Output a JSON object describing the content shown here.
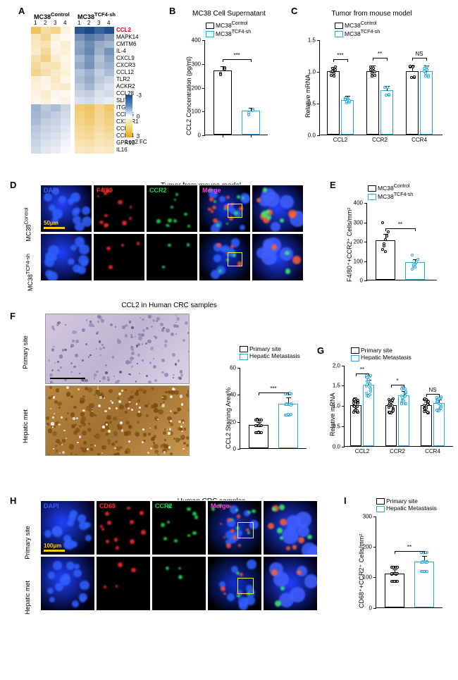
{
  "panelA": {
    "label": "A",
    "header1": "MC38",
    "header1sup": "Control",
    "header2": "MC38",
    "header2sup": "TCF4-sh",
    "colnums": [
      "1",
      "2",
      "3",
      "4",
      "1",
      "2",
      "3",
      "4"
    ],
    "genes": [
      "CCL2",
      "MAPK14",
      "CMTM6",
      "IL-4",
      "CXCL9",
      "CXCR3",
      "CCL12",
      "TLR2",
      "ACKR2",
      "CCL28",
      "SLIT2",
      "ITGB2",
      "CCL25",
      "CX3CR1",
      "CCR8",
      "CCL24",
      "GPR17",
      "IL16"
    ],
    "highlight_gene": "CCL2",
    "matrix": [
      [
        2.1,
        1.2,
        1.5,
        0.4,
        -2.8,
        -3.0,
        -2.6,
        -2.9
      ],
      [
        0.9,
        1.4,
        0.5,
        0.2,
        -1.8,
        -2.2,
        -2.0,
        -1.6
      ],
      [
        0.8,
        1.0,
        0.3,
        0.6,
        -1.5,
        -1.9,
        -1.4,
        -1.2
      ],
      [
        0.7,
        1.3,
        0.4,
        0.5,
        -1.6,
        -2.0,
        -1.3,
        -1.8
      ],
      [
        1.1,
        1.6,
        0.6,
        0.3,
        -1.2,
        -1.7,
        -1.0,
        -1.5
      ],
      [
        1.3,
        0.9,
        1.0,
        0.4,
        -1.4,
        -1.8,
        -1.1,
        -1.3
      ],
      [
        1.5,
        1.1,
        0.7,
        0.5,
        -1.0,
        -1.3,
        -0.8,
        -1.1
      ],
      [
        0.6,
        0.4,
        0.8,
        0.3,
        -1.1,
        -1.4,
        -0.9,
        -0.7
      ],
      [
        0.5,
        0.3,
        0.6,
        0.7,
        -0.9,
        -1.2,
        -0.7,
        -0.5
      ],
      [
        0.4,
        0.6,
        0.3,
        0.2,
        -0.7,
        -0.8,
        -0.5,
        -0.6
      ],
      [
        0.3,
        0.5,
        0.2,
        0.4,
        -0.5,
        -0.6,
        -0.4,
        -0.3
      ],
      [
        -1.3,
        -0.9,
        -1.1,
        -0.7,
        1.8,
        2.0,
        1.5,
        1.9
      ],
      [
        -1.2,
        -1.0,
        -0.8,
        -0.6,
        1.6,
        1.9,
        1.4,
        1.7
      ],
      [
        -1.1,
        -0.8,
        -0.7,
        -0.5,
        1.5,
        1.7,
        1.3,
        1.6
      ],
      [
        -0.9,
        -0.7,
        -0.6,
        -0.4,
        1.3,
        1.5,
        1.2,
        1.4
      ],
      [
        -0.8,
        -0.6,
        -0.5,
        -0.3,
        1.2,
        1.3,
        1.0,
        1.2
      ],
      [
        -0.7,
        -0.5,
        -0.4,
        -0.2,
        1.0,
        1.1,
        0.9,
        1.0
      ],
      [
        -0.6,
        -0.4,
        -0.3,
        -0.1,
        0.8,
        0.9,
        0.7,
        0.8
      ]
    ],
    "colorscale": {
      "min": -3,
      "max": 3,
      "min_color": "#1b4a8a",
      "mid_color": "#ffffff",
      "max_color": "#e6a817"
    },
    "legend_label": "Log2 FC",
    "legend_ticks": [
      "-3",
      "0",
      "3"
    ]
  },
  "panelB": {
    "label": "B",
    "title": "MC38 Cell Supernatant",
    "ylabel": "CCL2 Concentration (pg/ml)",
    "ymax": 400,
    "ytick_step": 100,
    "groups": [
      "MC38",
      "MC38"
    ],
    "groups_sup": [
      "Control",
      "TCF4-sh"
    ],
    "colors": [
      "#000000",
      "#29a9e0"
    ],
    "means": [
      270,
      100
    ],
    "sems": [
      20,
      15
    ],
    "points": [
      [
        260,
        285,
        255,
        280
      ],
      [
        85,
        110,
        95,
        105
      ]
    ],
    "sig": "***"
  },
  "panelC": {
    "label": "C",
    "title": "Tumor from mouse model",
    "ylabel": "Relative mRNA",
    "ymax": 1.5,
    "ytick_step": 0.5,
    "x_categories": [
      "CCL2",
      "CCR2",
      "CCR4"
    ],
    "groups": [
      "MC38",
      "MC38"
    ],
    "groups_sup": [
      "Control",
      "TCF4-sh"
    ],
    "colors": [
      "#000000",
      "#29a9e0"
    ],
    "means": [
      [
        1.0,
        0.55
      ],
      [
        1.0,
        0.7
      ],
      [
        1.0,
        1.0
      ]
    ],
    "sems": [
      [
        0.08,
        0.07
      ],
      [
        0.1,
        0.08
      ],
      [
        0.1,
        0.1
      ]
    ],
    "points_per_group": 8,
    "sigs": [
      "***",
      "**",
      "NS"
    ]
  },
  "panelD": {
    "label": "D",
    "title": "Tumor from mouse model",
    "channels": [
      "DAPI",
      "F4/80",
      "CCR2",
      "Merge"
    ],
    "channel_colors": [
      "#3b5bff",
      "#ff2d2d",
      "#18d860",
      "#ff3df0"
    ],
    "rows": [
      "MC38",
      "MC38"
    ],
    "rows_sup": [
      "Control",
      "TCF4-sh"
    ],
    "scalebar": "50μm",
    "scalebar_color": "#ffcc00"
  },
  "panelE": {
    "label": "E",
    "ylabel": "F4/80⁺+CCR2⁺ Cells/mm²",
    "ymax": 400,
    "ytick_step": 100,
    "groups": [
      "MC38",
      "MC38"
    ],
    "groups_sup": [
      "Control",
      "TCF4-sh"
    ],
    "colors": [
      "#000000",
      "#29a9e0"
    ],
    "means": [
      205,
      90
    ],
    "sems": [
      35,
      20
    ],
    "points": [
      [
        160,
        190,
        210,
        230,
        250,
        300,
        180,
        150
      ],
      [
        60,
        75,
        85,
        95,
        110,
        130,
        80,
        70
      ]
    ],
    "sig": "**"
  },
  "panelF": {
    "label": "F",
    "title": "CCL2 in Human CRC samples",
    "row_labels": [
      "Primary site",
      "Hepatic met"
    ],
    "bar": {
      "ylabel": "CCL2 Staining Area%",
      "ymax": 60,
      "ytick_step": 20,
      "groups": [
        "Primary site",
        "Hepatic Metastasis"
      ],
      "colors": [
        "#000000",
        "#29a9e0"
      ],
      "means": [
        17,
        33
      ],
      "sems": [
        3,
        5
      ],
      "n_points": 20,
      "sig": "***"
    }
  },
  "panelG": {
    "label": "G",
    "ylabel": "Relative mRNA",
    "ymax": 2.0,
    "ytick_step": 0.5,
    "x_categories": [
      "CCL2",
      "CCR2",
      "CCR4"
    ],
    "groups": [
      "Primary site",
      "Hepatic Metastasis"
    ],
    "colors": [
      "#000000",
      "#29a9e0"
    ],
    "means": [
      [
        1.0,
        1.5
      ],
      [
        1.0,
        1.25
      ],
      [
        1.0,
        1.05
      ]
    ],
    "sems": [
      [
        0.1,
        0.15
      ],
      [
        0.1,
        0.12
      ],
      [
        0.1,
        0.1
      ]
    ],
    "n_points": 20,
    "sigs": [
      "**",
      "*",
      "NS"
    ]
  },
  "panelH": {
    "label": "H",
    "title": "Human CRC samples",
    "channels": [
      "DAPI",
      "CD68",
      "CCR2",
      "Merge"
    ],
    "channel_colors": [
      "#3b5bff",
      "#ff2d2d",
      "#18d860",
      "#ff3df0"
    ],
    "rows": [
      "Primary site",
      "Hepatic met"
    ],
    "scalebar": "100μm",
    "scalebar_color": "#ffcc00"
  },
  "panelI": {
    "label": "I",
    "ylabel": "CD68⁺+CCR2⁺ Cells/mm²",
    "ymax": 300,
    "ytick_step": 100,
    "groups": [
      "Primary site",
      "Hepatic Metastasis"
    ],
    "colors": [
      "#000000",
      "#29a9e0"
    ],
    "means": [
      110,
      150
    ],
    "sems": [
      15,
      20
    ],
    "n_points": 20,
    "sig": "**"
  }
}
